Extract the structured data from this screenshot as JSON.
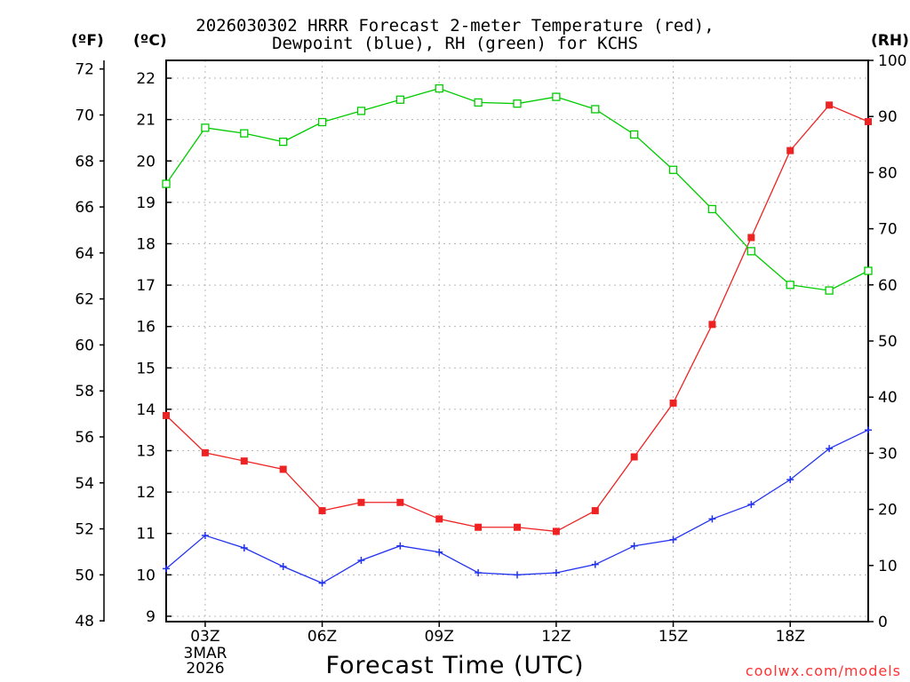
{
  "title": {
    "line1": "2026030302 HRRR Forecast 2-meter Temperature (red),",
    "line2": "Dewpoint (blue), RH (green) for KCHS"
  },
  "axis_units": {
    "left_f": "(ºF)",
    "left_c": "(ºC)",
    "right_rh": "(RH)"
  },
  "xlabel": "Forecast Time (UTC)",
  "date_label": {
    "day": "3MAR",
    "year": "2026"
  },
  "credit": "coolwx.com/models",
  "chart_data": {
    "type": "line",
    "title": "2026030302 HRRR Forecast 2-meter Temperature (red), Dewpoint (blue), RH (green) for KCHS",
    "xlabel": "Forecast Time (UTC)",
    "x": [
      2,
      3,
      4,
      5,
      6,
      7,
      8,
      9,
      10,
      11,
      12,
      13,
      14,
      15,
      16,
      17,
      18,
      19,
      20
    ],
    "xlim": [
      2,
      20
    ],
    "x_ticks": [
      3,
      6,
      9,
      12,
      15,
      18
    ],
    "x_tick_labels": [
      "03Z",
      "06Z",
      "09Z",
      "12Z",
      "15Z",
      "18Z"
    ],
    "y_celsius": {
      "lim": [
        8.87,
        22.43
      ],
      "ticks": [
        9,
        10,
        11,
        12,
        13,
        14,
        15,
        16,
        17,
        18,
        19,
        20,
        21,
        22
      ]
    },
    "y_fahrenheit": {
      "ticks": [
        48,
        50,
        52,
        54,
        56,
        58,
        60,
        62,
        64,
        66,
        68,
        70,
        72
      ]
    },
    "y_rh": {
      "lim": [
        0,
        100
      ],
      "ticks": [
        0,
        10,
        20,
        30,
        40,
        50,
        60,
        70,
        80,
        90,
        100
      ]
    },
    "grid": true,
    "series": [
      {
        "name": "Temperature",
        "axis": "celsius",
        "color": "#ee2222",
        "marker": "filled-square",
        "values": [
          13.85,
          12.95,
          12.75,
          12.55,
          11.55,
          11.75,
          11.75,
          11.35,
          11.15,
          11.15,
          11.05,
          11.55,
          12.85,
          14.15,
          16.05,
          18.15,
          20.25,
          21.35,
          20.95
        ]
      },
      {
        "name": "Dewpoint",
        "axis": "celsius",
        "color": "#2233ee",
        "marker": "plus",
        "values": [
          10.15,
          10.95,
          10.65,
          10.2,
          9.8,
          10.35,
          10.7,
          10.55,
          10.05,
          10.0,
          10.05,
          10.25,
          10.7,
          10.85,
          11.35,
          11.7,
          12.3,
          13.05,
          13.5
        ]
      },
      {
        "name": "RH",
        "axis": "rh",
        "color": "#00cc00",
        "marker": "open-square",
        "values": [
          78,
          88,
          87,
          85.5,
          89,
          91,
          93,
          95,
          92.5,
          92.3,
          93.5,
          91.3,
          86.8,
          80.5,
          73.5,
          66,
          60,
          59,
          62.5
        ]
      }
    ]
  }
}
